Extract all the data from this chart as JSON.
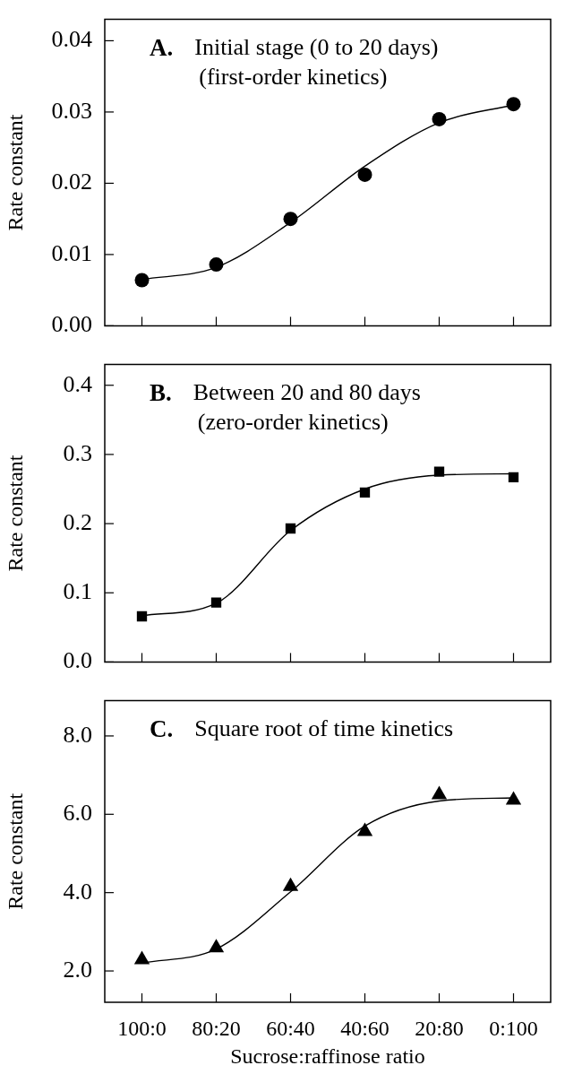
{
  "chart_data": [
    {
      "type": "line",
      "title": "A.",
      "subtitle": "Initial stage (0 to 20 days)\n(first-order kinetics)",
      "ylabel": "Rate constant",
      "categories": [
        null,
        null,
        null,
        null,
        null,
        null
      ],
      "ylim": [
        0,
        0.043
      ],
      "yticks": [
        {
          "value": 0,
          "label": "0.00"
        },
        0.01,
        0.02,
        0.03,
        0.04
      ],
      "series": [
        {
          "type": "scatter",
          "marker": "circle",
          "color": "#000000",
          "values": [
            0.0064,
            0.0086,
            0.015,
            0.0212,
            0.029,
            0.0311
          ]
        },
        {
          "type": "line",
          "marker": "none",
          "color": "#000000",
          "values": [
            0.0065,
            0.0082,
            0.0145,
            0.0224,
            0.0285,
            0.031
          ]
        }
      ]
    },
    {
      "type": "line",
      "title": "B.",
      "subtitle": "Between 20 and 80 days\n(zero-order kinetics)",
      "ylabel": "Rate constant",
      "categories": [
        null,
        null,
        null,
        null,
        null,
        null
      ],
      "ylim": [
        0,
        0.43
      ],
      "yticks": [
        {
          "value": 0,
          "label": "0.0"
        },
        0.1,
        0.2,
        0.3,
        0.4
      ],
      "series": [
        {
          "type": "scatter",
          "marker": "square",
          "color": "#000000",
          "values": [
            0.066,
            0.086,
            0.193,
            0.245,
            0.275,
            0.267
          ]
        },
        {
          "type": "line",
          "marker": "none",
          "color": "#000000",
          "values": [
            0.067,
            0.085,
            0.19,
            0.25,
            0.27,
            0.272
          ]
        }
      ]
    },
    {
      "type": "line",
      "title": "C.",
      "subtitle": "Square root of time kinetics",
      "ylabel": "Rate constant",
      "xlabel": "Sucrose:raffinose ratio",
      "categories": [
        "100:0",
        "80:20",
        "60:40",
        "40:60",
        "20:80",
        "0:100"
      ],
      "ylim": [
        1.2,
        8.9
      ],
      "yticks": [
        {
          "value": 2,
          "label": "2.0"
        },
        {
          "value": 4,
          "label": "4.0"
        },
        {
          "value": 6,
          "label": "6.0"
        },
        {
          "value": 8,
          "label": "8.0"
        }
      ],
      "series": [
        {
          "type": "scatter",
          "marker": "triangle",
          "color": "#000000",
          "values": [
            2.29,
            2.59,
            4.16,
            5.56,
            6.5,
            6.36
          ]
        },
        {
          "type": "line",
          "marker": "none",
          "color": "#000000",
          "values": [
            2.2,
            2.56,
            4.02,
            5.7,
            6.34,
            6.42
          ]
        }
      ]
    }
  ]
}
